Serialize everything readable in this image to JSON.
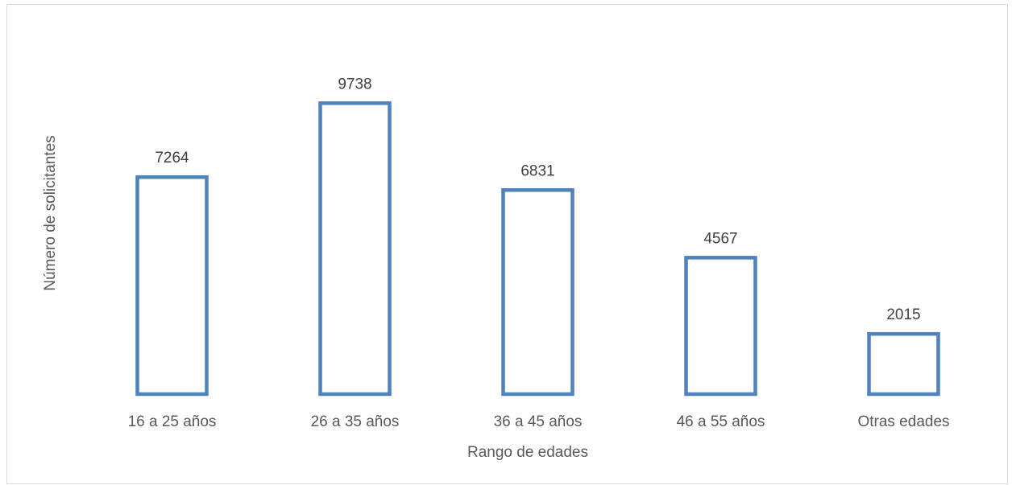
{
  "chart_data": {
    "type": "bar",
    "title": "",
    "xlabel": "Rango de edades",
    "ylabel": "Número de solicitantes",
    "categories": [
      "16 a 25 años",
      "26 a 35 años",
      "36 a 45 años",
      "46 a 55 años",
      "Otras edades"
    ],
    "values": [
      7264,
      9738,
      6831,
      4567,
      2015
    ],
    "value_labels": [
      "7264",
      "9738",
      "6831",
      "4567",
      "2015"
    ],
    "ylim": [
      0,
      10500
    ],
    "grid": false,
    "legend": "none",
    "bar_style": "outline",
    "colors": {
      "bar_stroke": "#4f81bd",
      "bar_fill": "#ffffff",
      "text": "#595959",
      "frame": "#d9d9d9"
    }
  }
}
